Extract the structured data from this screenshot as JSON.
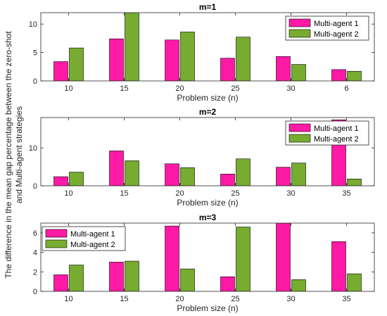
{
  "figure": {
    "ylabel": "The difference in the mean gap percentage between the zero-shot and Multi-agent strategies",
    "ylabel_lines": [
      "The difference in the mean gap percentage between the zero-shot",
      "and Multi-agent strategies"
    ],
    "colors": {
      "series1": "#ff1aa6",
      "series2": "#77ac30",
      "edge": "#000000"
    }
  },
  "chart_data": [
    {
      "type": "bar",
      "title": "m=1",
      "xlabel": "Problem size (n)",
      "ylabel": "",
      "categories": [
        "10",
        "15",
        "20",
        "25",
        "30",
        "6"
      ],
      "series": [
        {
          "name": "Multi-agent 1",
          "values": [
            3.4,
            7.4,
            7.2,
            4.0,
            4.3,
            2.0
          ]
        },
        {
          "name": "Multi-agent 2",
          "values": [
            5.8,
            12.0,
            8.6,
            7.7,
            2.9,
            1.7
          ]
        }
      ],
      "ylim": [
        0,
        12
      ],
      "yticks": [
        0,
        5,
        10
      ],
      "legend": "top-right"
    },
    {
      "type": "bar",
      "title": "m=2",
      "xlabel": "Problem size (n)",
      "ylabel": "",
      "categories": [
        "10",
        "15",
        "20",
        "25",
        "30",
        "35"
      ],
      "series": [
        {
          "name": "Multi-agent 1",
          "values": [
            2.4,
            9.2,
            5.8,
            3.1,
            4.9,
            17.4
          ]
        },
        {
          "name": "Multi-agent 2",
          "values": [
            3.6,
            6.6,
            4.8,
            7.1,
            6.0,
            1.8
          ]
        }
      ],
      "ylim": [
        0,
        18
      ],
      "yticks": [
        0,
        10
      ],
      "legend": "top-right"
    },
    {
      "type": "bar",
      "title": "m=3",
      "xlabel": "Problem size (n)",
      "ylabel": "",
      "categories": [
        "10",
        "15",
        "20",
        "25",
        "30",
        "35"
      ],
      "series": [
        {
          "name": "Multi-agent 1",
          "values": [
            1.7,
            3.0,
            6.7,
            1.5,
            7.0,
            5.1
          ]
        },
        {
          "name": "Multi-agent 2",
          "values": [
            2.7,
            3.1,
            2.3,
            6.6,
            1.2,
            1.8
          ]
        }
      ],
      "ylim": [
        0,
        7
      ],
      "yticks": [
        0,
        2,
        4,
        6
      ],
      "legend": "top-left"
    }
  ]
}
